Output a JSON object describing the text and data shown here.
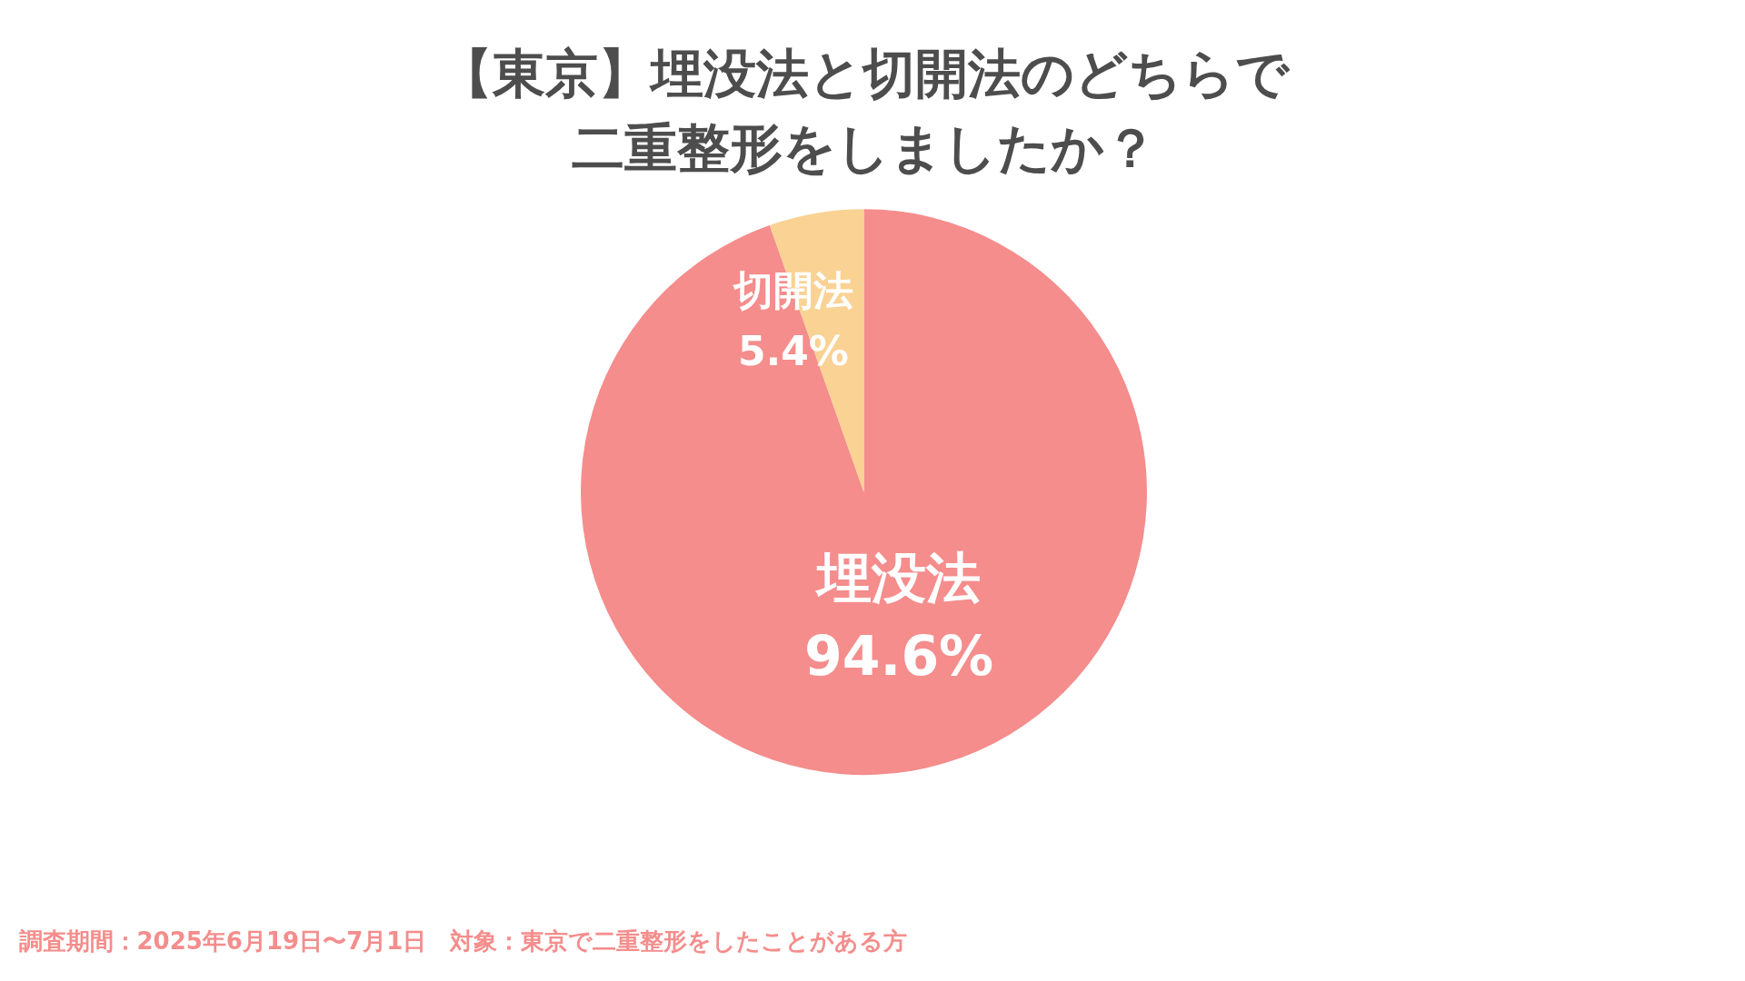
{
  "chart_data": {
    "type": "pie",
    "title": "【東京】埋没法と切開法のどちらで二重整形をしましたか？",
    "categories": [
      "埋没法",
      "切開法"
    ],
    "values": [
      94.6,
      5.4
    ],
    "value_labels": [
      "94.6%",
      "5.4%"
    ],
    "colors": [
      "#f48d8c",
      "#f9d294"
    ],
    "legend": false,
    "annotations": [
      "調査期間：2025年6月19日〜7月1日　対象：東京で二重整形をしたことがある方"
    ]
  }
}
